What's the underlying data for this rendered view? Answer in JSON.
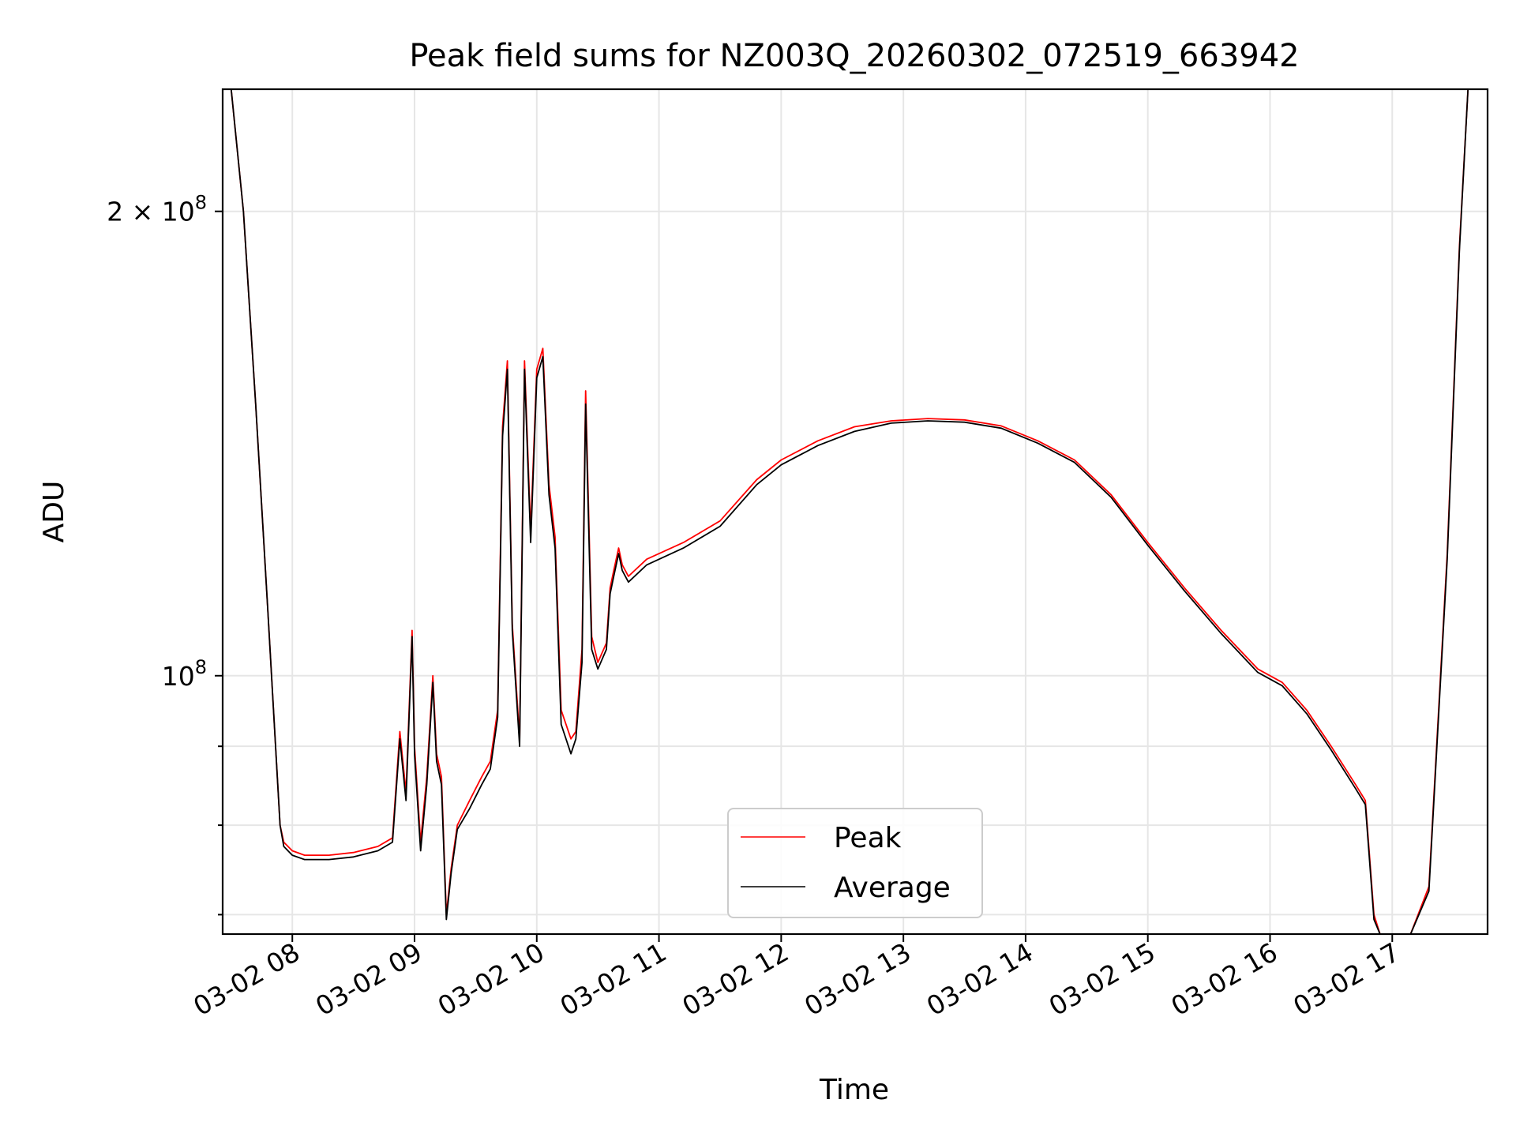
{
  "chart_data": {
    "type": "line",
    "title": "Peak field sums for NZ003Q_20260302_072519_663942",
    "xlabel": "Time",
    "ylabel": "ADU",
    "yscale": "log",
    "ylim": [
      68000000,
      240000000
    ],
    "xlim_hours": [
      7.43,
      17.78
    ],
    "grid": true,
    "legend_position": "lower-center",
    "x_ticks": [
      {
        "hour": 8,
        "label": "03-02 08"
      },
      {
        "hour": 9,
        "label": "03-02 09"
      },
      {
        "hour": 10,
        "label": "03-02 10"
      },
      {
        "hour": 11,
        "label": "03-02 11"
      },
      {
        "hour": 12,
        "label": "03-02 12"
      },
      {
        "hour": 13,
        "label": "03-02 13"
      },
      {
        "hour": 14,
        "label": "03-02 14"
      },
      {
        "hour": 15,
        "label": "03-02 15"
      },
      {
        "hour": 16,
        "label": "03-02 16"
      },
      {
        "hour": 17,
        "label": "03-02 17"
      }
    ],
    "y_major_ticks": [
      {
        "value": 100000000,
        "base": "10",
        "exp": "8",
        "coef": ""
      },
      {
        "value": 200000000,
        "base": "10",
        "exp": "8",
        "coef": "2 × "
      }
    ],
    "y_minor_ticks": [
      70000000,
      80000000,
      90000000
    ],
    "x_hours": [
      7.43,
      7.5,
      7.6,
      7.7,
      7.8,
      7.9,
      7.93,
      8.0,
      8.1,
      8.3,
      8.5,
      8.7,
      8.82,
      8.88,
      8.93,
      8.98,
      9.0,
      9.05,
      9.1,
      9.15,
      9.18,
      9.22,
      9.26,
      9.3,
      9.35,
      9.45,
      9.55,
      9.62,
      9.68,
      9.72,
      9.76,
      9.8,
      9.86,
      9.9,
      9.95,
      10.0,
      10.05,
      10.1,
      10.15,
      10.2,
      10.28,
      10.32,
      10.37,
      10.4,
      10.45,
      10.5,
      10.57,
      10.6,
      10.63,
      10.67,
      10.7,
      10.75,
      10.9,
      11.2,
      11.5,
      11.8,
      12.0,
      12.3,
      12.6,
      12.9,
      13.2,
      13.5,
      13.8,
      14.1,
      14.4,
      14.7,
      15.0,
      15.3,
      15.6,
      15.9,
      16.1,
      16.3,
      16.5,
      16.7,
      16.78,
      16.85,
      16.9,
      17.0,
      17.05,
      17.15,
      17.3,
      17.45,
      17.55,
      17.62,
      17.78
    ],
    "series": [
      {
        "name": "Peak",
        "color": "#ff0000",
        "values": [
          240000000,
          240000000,
          200000000,
          150000000,
          110000000,
          80000000,
          78000000,
          77000000,
          76500000,
          76500000,
          76800000,
          77500000,
          78500000,
          92000000,
          84000000,
          107000000,
          90000000,
          78000000,
          86000000,
          100000000,
          89000000,
          86000000,
          70000000,
          75000000,
          80000000,
          83000000,
          86000000,
          88000000,
          95000000,
          145000000,
          160000000,
          108000000,
          91000000,
          160000000,
          124000000,
          158000000,
          163000000,
          133000000,
          123000000,
          95000000,
          91000000,
          92000000,
          104000000,
          153000000,
          106000000,
          102000000,
          105000000,
          114000000,
          117000000,
          121000000,
          118000000,
          116000000,
          119000000,
          122000000,
          126000000,
          134000000,
          138000000,
          142000000,
          145000000,
          146300000,
          146800000,
          146500000,
          145200000,
          142000000,
          138000000,
          131000000,
          122000000,
          114000000,
          107000000,
          101000000,
          99000000,
          95000000,
          90000000,
          85000000,
          83000000,
          70000000,
          66500000,
          66500000,
          66500000,
          67000000,
          73000000,
          120000000,
          190000000,
          240000000,
          240000000
        ]
      },
      {
        "name": "Average",
        "color": "#000000",
        "values": [
          240000000,
          240000000,
          200000000,
          150000000,
          110000000,
          80000000,
          77500000,
          76500000,
          76000000,
          76000000,
          76300000,
          77000000,
          78000000,
          91000000,
          83000000,
          106000000,
          89000000,
          77000000,
          85000000,
          99000000,
          88000000,
          85000000,
          69500000,
          74500000,
          79500000,
          82000000,
          85000000,
          87000000,
          94000000,
          143000000,
          158000000,
          107000000,
          90000000,
          158000000,
          122000000,
          156000000,
          161000000,
          131000000,
          121000000,
          93000000,
          89000000,
          91000000,
          102000000,
          150000000,
          104000000,
          101000000,
          104000000,
          113000000,
          116000000,
          120000000,
          117000000,
          115000000,
          118000000,
          121000000,
          125000000,
          133000000,
          137000000,
          141000000,
          144000000,
          145800000,
          146300000,
          146000000,
          144700000,
          141500000,
          137500000,
          130500000,
          121500000,
          113500000,
          106500000,
          100500000,
          98500000,
          94500000,
          89500000,
          84500000,
          82500000,
          69500000,
          66000000,
          66000000,
          66000000,
          66500000,
          72500000,
          119000000,
          189000000,
          240000000,
          240000000
        ]
      }
    ]
  }
}
